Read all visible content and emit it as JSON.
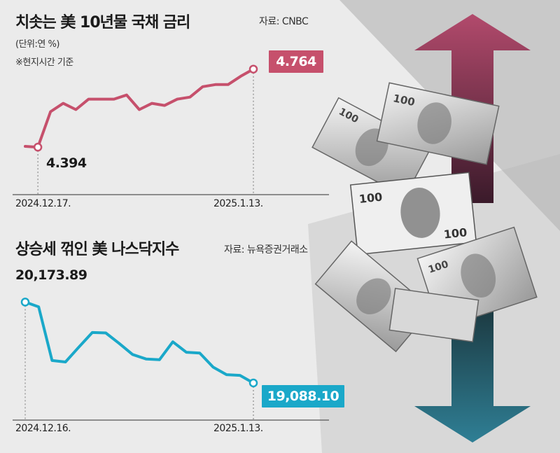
{
  "colors": {
    "yield_line": "#c6506c",
    "yield_box": "#c6506c",
    "nasdaq_line": "#1aa8c9",
    "nasdaq_box": "#1aa8c9",
    "background_gray": "#e8e8e8",
    "arrow_up": "#9a3d5c",
    "arrow_down": "#2b6b7e"
  },
  "icons": [
    "up-arrow-icon",
    "down-arrow-icon",
    "money-bills-image"
  ],
  "chart_data": [
    {
      "type": "line",
      "title": "치솟는 美 10년물 국채 금리",
      "subtitle": "(단위:연 %)",
      "note": "※현지시간 기준",
      "source": "자료: CNBC",
      "x_labels": [
        "2024.12.17.",
        "2025.1.13."
      ],
      "series": [
        {
          "values": [
            4.394,
            4.39,
            4.56,
            4.6,
            4.57,
            4.62,
            4.62,
            4.62,
            4.64,
            4.57,
            4.6,
            4.59,
            4.62,
            4.63,
            4.68,
            4.69,
            4.69,
            4.73,
            4.764
          ]
        }
      ],
      "first_label": "4.394",
      "last_label": "4.764",
      "ylim": [
        4.3,
        4.8
      ]
    },
    {
      "type": "line",
      "title": "상승세 꺾인 美 나스닥지수",
      "source": "자료: 뉴욕증권거래소",
      "x_labels": [
        "2024.12.16.",
        "2025.1.13."
      ],
      "series": [
        {
          "values": [
            20173.89,
            20110,
            19390,
            19370,
            19570,
            19765,
            19760,
            19620,
            19470,
            19410,
            19400,
            19640,
            19500,
            19490,
            19300,
            19200,
            19190,
            19088.1
          ]
        }
      ],
      "first_label": "20,173.89",
      "last_label": "19,088.10",
      "ylim": [
        18900,
        20300
      ]
    }
  ]
}
